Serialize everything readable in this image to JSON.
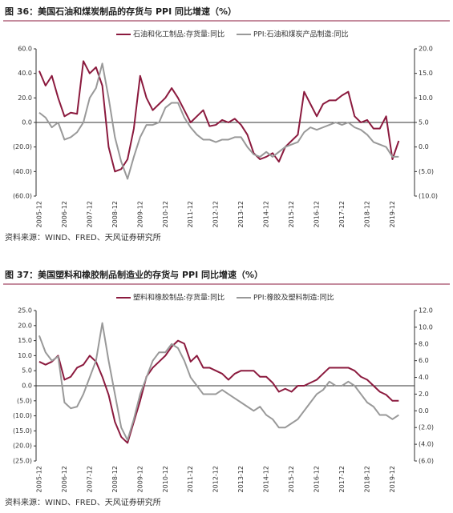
{
  "chart_data": [
    {
      "type": "line",
      "title": "图 36：美国石油和煤炭制品的存货与 PPI 同比增速（%）",
      "source": "资料来源：WIND、FRED、天风证券研究所",
      "categories": [
        "2005-12",
        null,
        null,
        null,
        "2006-12",
        null,
        null,
        null,
        "2007-12",
        null,
        null,
        null,
        "2008-12",
        null,
        null,
        null,
        "2009-12",
        null,
        null,
        null,
        "2010-12",
        null,
        null,
        null,
        "2011-12",
        null,
        null,
        null,
        "2012-12",
        null,
        null,
        null,
        "2013-12",
        null,
        null,
        null,
        "2014-12",
        null,
        null,
        null,
        "2015-12",
        null,
        null,
        null,
        "2016-12",
        null,
        null,
        null,
        "2017-12",
        null,
        null,
        null,
        "2018-12",
        null,
        null,
        null,
        "2019-12",
        null
      ],
      "series": [
        {
          "name": "石油和化工制品:存货量:同比",
          "color": "#8b1a3e",
          "values": [
            42,
            30,
            38,
            20,
            5,
            8,
            7,
            50,
            40,
            45,
            30,
            -20,
            -40,
            -38,
            -30,
            -5,
            38,
            20,
            10,
            15,
            20,
            28,
            20,
            10,
            0,
            5,
            10,
            -3,
            -2,
            2,
            0,
            3,
            -2,
            -10,
            -25,
            -30,
            -28,
            -25,
            -32,
            -20,
            -15,
            -10,
            25,
            15,
            5,
            15,
            18,
            18,
            22,
            25,
            5,
            0,
            2,
            -5,
            -5,
            5,
            -30,
            -15
          ]
        },
        {
          "name": "PPI:石油和煤炭产品制造:同比",
          "color": "#999999",
          "axis": "y2",
          "values": [
            7,
            6,
            4,
            5,
            1.5,
            2,
            3,
            5,
            10,
            12,
            17,
            10,
            2,
            -3,
            -6.5,
            -2,
            2,
            4.5,
            4.5,
            5,
            8,
            9,
            9,
            6,
            4,
            2.5,
            1.5,
            1.5,
            1,
            1.5,
            1.5,
            2,
            2,
            0,
            -1.5,
            -2,
            -1,
            -2,
            -1,
            0,
            0.5,
            1,
            3,
            4,
            3.5,
            4,
            4.5,
            5,
            4.5,
            5,
            4,
            3.5,
            2.5,
            1,
            0.5,
            0,
            -2,
            -2
          ]
        }
      ],
      "ylim": [
        -60,
        60
      ],
      "yticks": [
        {
          "value": -60,
          "label": "(60.0)"
        },
        {
          "value": -40,
          "label": "(40.0)"
        },
        {
          "value": -20,
          "label": "(20.0)"
        },
        {
          "value": 0,
          "label": "0.0"
        },
        {
          "value": 20,
          "label": "20.0"
        },
        {
          "value": 40,
          "label": "40.0"
        },
        {
          "value": 60,
          "label": "60.0"
        }
      ],
      "y2lim": [
        -10,
        20
      ],
      "y2ticks": [
        {
          "value": -10,
          "label": "(10.0)"
        },
        {
          "value": -5,
          "label": "(5.0)"
        },
        {
          "value": 0,
          "label": "0.0"
        },
        {
          "value": 5,
          "label": "5.0"
        },
        {
          "value": 10,
          "label": "10.0"
        },
        {
          "value": 15,
          "label": "15.0"
        },
        {
          "value": 20,
          "label": "20.0"
        }
      ]
    },
    {
      "type": "line",
      "title": "图 37：美国塑料和橡胶制品制造业的存货与 PPI 同比增速（%）",
      "source": "资料来源：WIND、FRED、天风证券研究所",
      "categories": [
        "2005-12",
        null,
        null,
        null,
        "2006-12",
        null,
        null,
        null,
        "2007-12",
        null,
        null,
        null,
        "2008-12",
        null,
        null,
        null,
        "2009-12",
        null,
        null,
        null,
        "2010-12",
        null,
        null,
        null,
        "2011-12",
        null,
        null,
        null,
        "2012-12",
        null,
        null,
        null,
        "2013-12",
        null,
        null,
        null,
        "2014-12",
        null,
        null,
        null,
        "2015-12",
        null,
        null,
        null,
        "2016-12",
        null,
        null,
        null,
        "2017-12",
        null,
        null,
        null,
        "2018-12",
        null,
        null,
        null,
        "2019-12",
        null
      ],
      "series": [
        {
          "name": "塑料和橡胶制品:存货量:同比",
          "color": "#8b1a3e",
          "values": [
            8,
            7,
            8,
            10,
            2,
            3,
            6,
            7,
            10,
            8,
            3,
            -3,
            -12,
            -17,
            -19,
            -12,
            -5,
            3,
            6,
            8,
            10,
            13,
            15,
            14,
            8,
            10,
            6,
            6,
            5,
            4,
            2,
            4,
            5,
            5,
            5,
            3,
            3,
            1,
            -2,
            -1,
            -2,
            0,
            0,
            1,
            2,
            4,
            6,
            6,
            6,
            6,
            5,
            3,
            2,
            0,
            -2,
            -3,
            -5,
            -5
          ]
        },
        {
          "name": "PPI:橡胶及塑料制造:同比",
          "color": "#999999",
          "axis": "y2",
          "values": [
            9,
            7,
            6,
            6.5,
            1,
            0.3,
            0.5,
            2,
            4,
            6,
            10.5,
            6,
            2,
            -2,
            -3.5,
            -1,
            2,
            4,
            6,
            7,
            7,
            8,
            7.5,
            6,
            4,
            3,
            2,
            2,
            2,
            2.5,
            2,
            1.5,
            1,
            0.5,
            0,
            0.5,
            -0.5,
            -1,
            -2,
            -2,
            -1.5,
            -1,
            0,
            1,
            2,
            2.5,
            3.5,
            3,
            3,
            3.5,
            3,
            2,
            1,
            0.5,
            -0.5,
            -0.5,
            -1,
            -0.5
          ]
        }
      ],
      "ylim": [
        -25,
        25
      ],
      "yticks": [
        {
          "value": -25,
          "label": "(25.0)"
        },
        {
          "value": -20,
          "label": "(20.0)"
        },
        {
          "value": -15,
          "label": "(15.0)"
        },
        {
          "value": -10,
          "label": "(10.0)"
        },
        {
          "value": -5,
          "label": "(5.0)"
        },
        {
          "value": 0,
          "label": "0.0"
        },
        {
          "value": 5,
          "label": "5.0"
        },
        {
          "value": 10,
          "label": "10.0"
        },
        {
          "value": 15,
          "label": "15.0"
        },
        {
          "value": 20,
          "label": "20.0"
        },
        {
          "value": 25,
          "label": "25.0"
        }
      ],
      "y2lim": [
        -6,
        12
      ],
      "y2ticks": [
        {
          "value": -6,
          "label": "(6.0)"
        },
        {
          "value": -4,
          "label": "(4.0)"
        },
        {
          "value": -2,
          "label": "(2.0)"
        },
        {
          "value": 0,
          "label": "0.0"
        },
        {
          "value": 2,
          "label": "2.0"
        },
        {
          "value": 4,
          "label": "4.0"
        },
        {
          "value": 6,
          "label": "6.0"
        },
        {
          "value": 8,
          "label": "8.0"
        },
        {
          "value": 10,
          "label": "10.0"
        },
        {
          "value": 12,
          "label": "12.0"
        }
      ]
    }
  ]
}
